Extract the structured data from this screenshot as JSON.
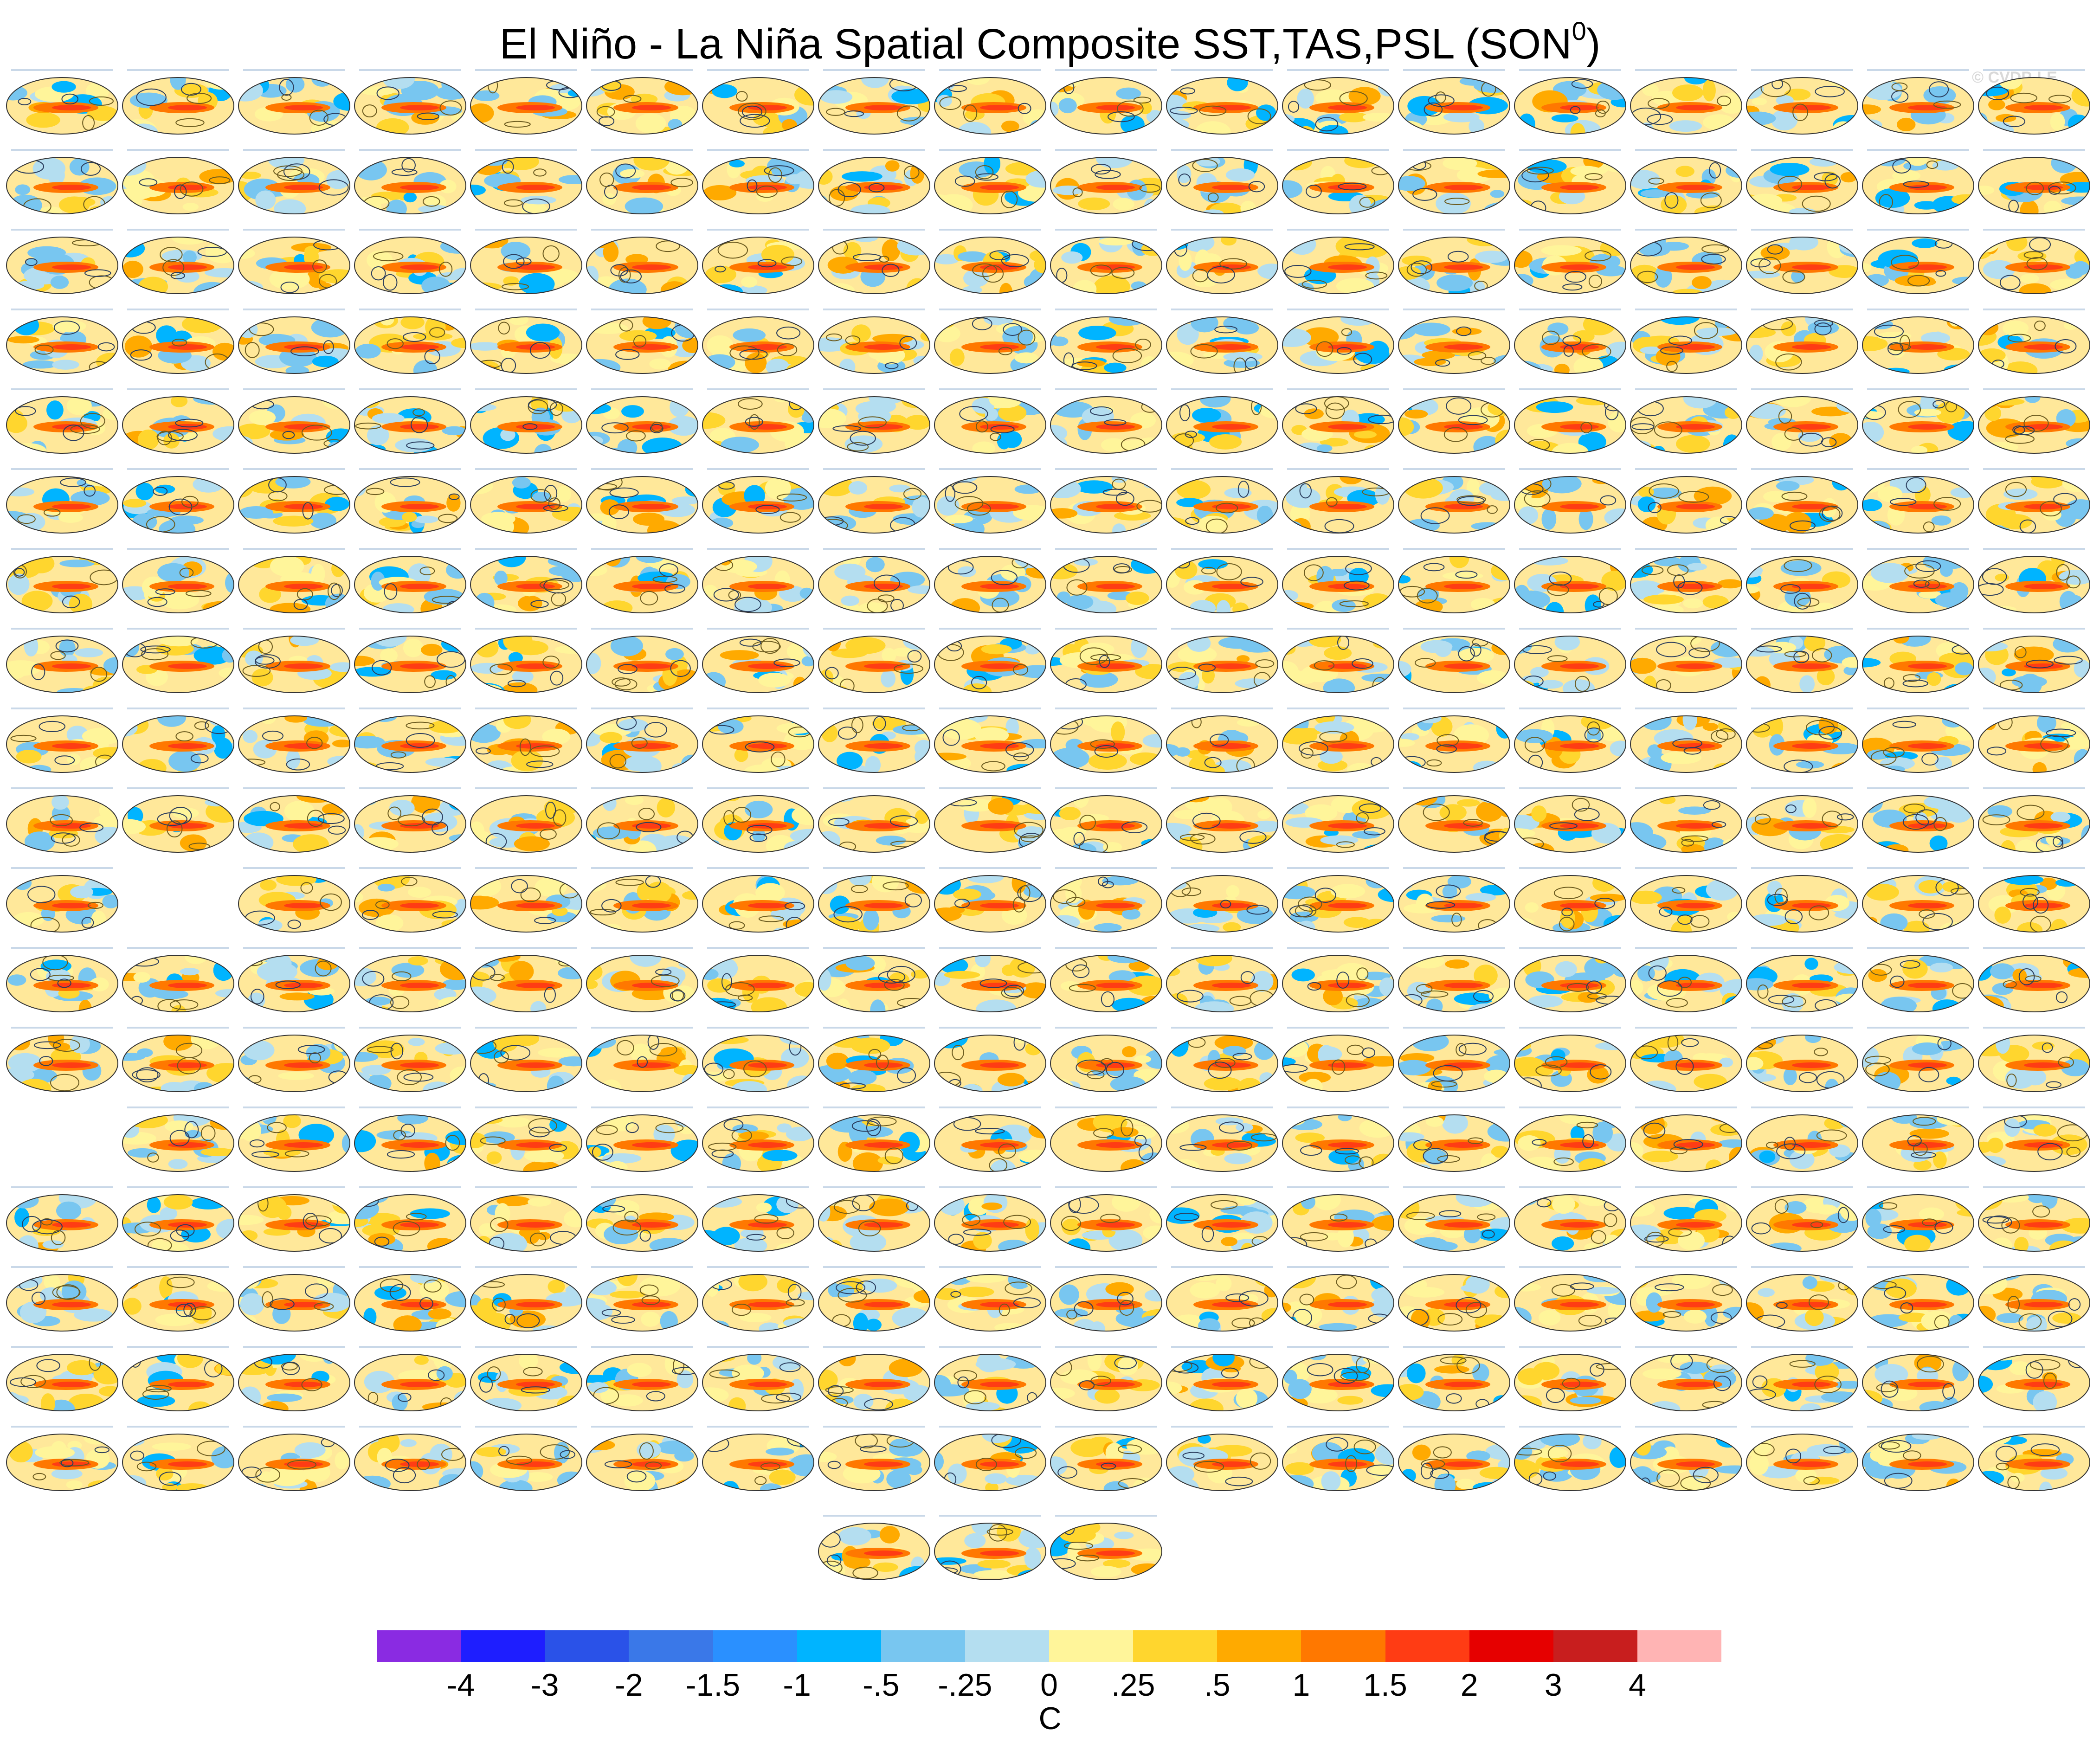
{
  "title": {
    "main": "El Niño - La Niña Spatial Composite SST,TAS,PSL (SON",
    "superscript": "0",
    "close": ")"
  },
  "watermark": "© CVDP-LE",
  "chart_data": {
    "type": "heatmap",
    "panel_layout": {
      "row_counts": [
        18,
        18,
        18,
        18,
        18,
        18,
        18,
        18,
        18,
        18,
        17,
        18,
        18,
        17,
        18,
        18,
        18,
        18,
        3
      ],
      "row_offsets": [
        0,
        0,
        0,
        0,
        0,
        0,
        0,
        0,
        0,
        0,
        0,
        0,
        0,
        1,
        0,
        0,
        0,
        0,
        7
      ],
      "row10_gap_after_first": 1
    },
    "colorbar": {
      "colors": [
        "#8a2be2",
        "#1e1eff",
        "#2a52e8",
        "#3a78e8",
        "#2a90ff",
        "#00b4ff",
        "#78c6f0",
        "#b4def0",
        "#fff59a",
        "#ffd62e",
        "#ffaa00",
        "#ff7800",
        "#ff3c14",
        "#e60000",
        "#c81e1e",
        "#ffb4b4"
      ],
      "ticks": [
        "-4",
        "-3",
        "-2",
        "-1.5",
        "-1",
        "-.5",
        "-.25",
        "0",
        ".25",
        ".5",
        "1",
        "1.5",
        "2",
        "3",
        "4"
      ],
      "units": "C"
    }
  }
}
